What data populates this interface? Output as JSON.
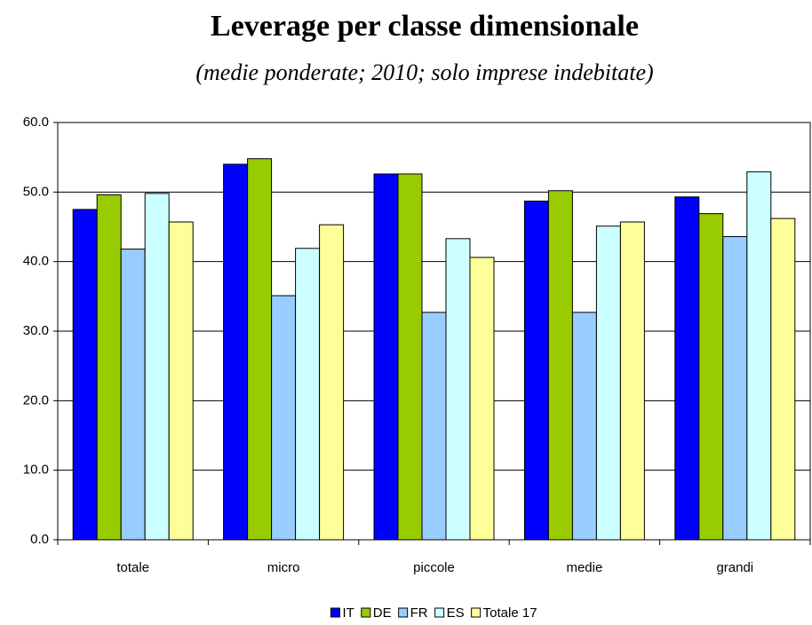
{
  "chart_data": {
    "type": "bar",
    "title": "Leverage per classe dimensionale",
    "subtitle": "(medie ponderate; 2010; solo imprese indebitate)",
    "categories": [
      "totale",
      "micro",
      "piccole",
      "medie",
      "grandi"
    ],
    "series": [
      {
        "name": "IT",
        "color": "#0000ff",
        "values": [
          47.5,
          54.0,
          52.6,
          48.7,
          49.3
        ]
      },
      {
        "name": "DE",
        "color": "#99cc00",
        "values": [
          49.6,
          54.8,
          52.6,
          50.2,
          46.9
        ]
      },
      {
        "name": "FR",
        "color": "#99ccff",
        "values": [
          41.8,
          35.1,
          32.7,
          32.7,
          43.6
        ]
      },
      {
        "name": "ES",
        "color": "#ccffff",
        "values": [
          49.8,
          41.9,
          43.3,
          45.1,
          52.9
        ]
      },
      {
        "name": "Totale 17",
        "color": "#ffff99",
        "values": [
          45.7,
          45.3,
          40.6,
          45.7,
          46.2
        ]
      }
    ],
    "ylim": [
      0,
      60
    ],
    "yticks": [
      {
        "value": 0,
        "label": "0.0"
      },
      {
        "value": 10,
        "label": "10.0"
      },
      {
        "value": 20,
        "label": "20.0"
      },
      {
        "value": 30,
        "label": "30.0"
      },
      {
        "value": 40,
        "label": "40.0"
      },
      {
        "value": 50,
        "label": "50.0"
      },
      {
        "value": 60,
        "label": "60.0"
      }
    ],
    "grid": true,
    "legend": "bottom"
  }
}
